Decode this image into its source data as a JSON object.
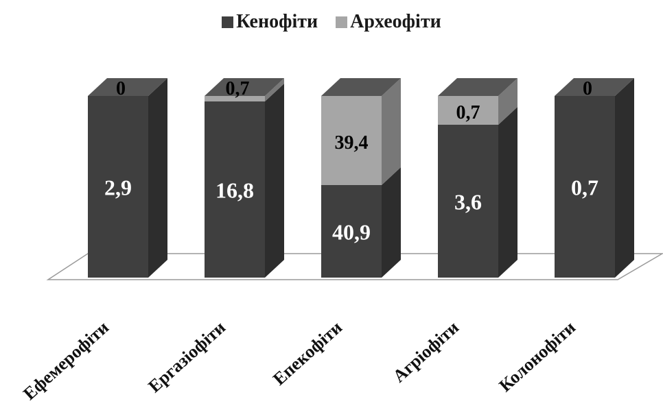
{
  "chart_data": {
    "type": "bar",
    "stacked": true,
    "style": "3d",
    "categories": [
      "Ефемерофіти",
      "Ергазіофіти",
      "Епекофіти",
      "Агріофіти",
      "Колонофіти"
    ],
    "series": [
      {
        "name": "Кенофіти",
        "values": [
          2.9,
          16.8,
          40.9,
          3.6,
          0.7
        ],
        "labels": [
          "2,9",
          "16,8",
          "40,9",
          "3,6",
          "0,7"
        ]
      },
      {
        "name": "Археофіти",
        "values": [
          0,
          0.7,
          39.4,
          0.7,
          0
        ],
        "labels": [
          "0",
          "0,7",
          "39,4",
          "0,7",
          "0"
        ]
      }
    ],
    "legend_position": "top",
    "colors": {
      "Кенофіти": "#3f3f3f",
      "Археофіти": "#a6a6a6"
    },
    "grid": false
  }
}
